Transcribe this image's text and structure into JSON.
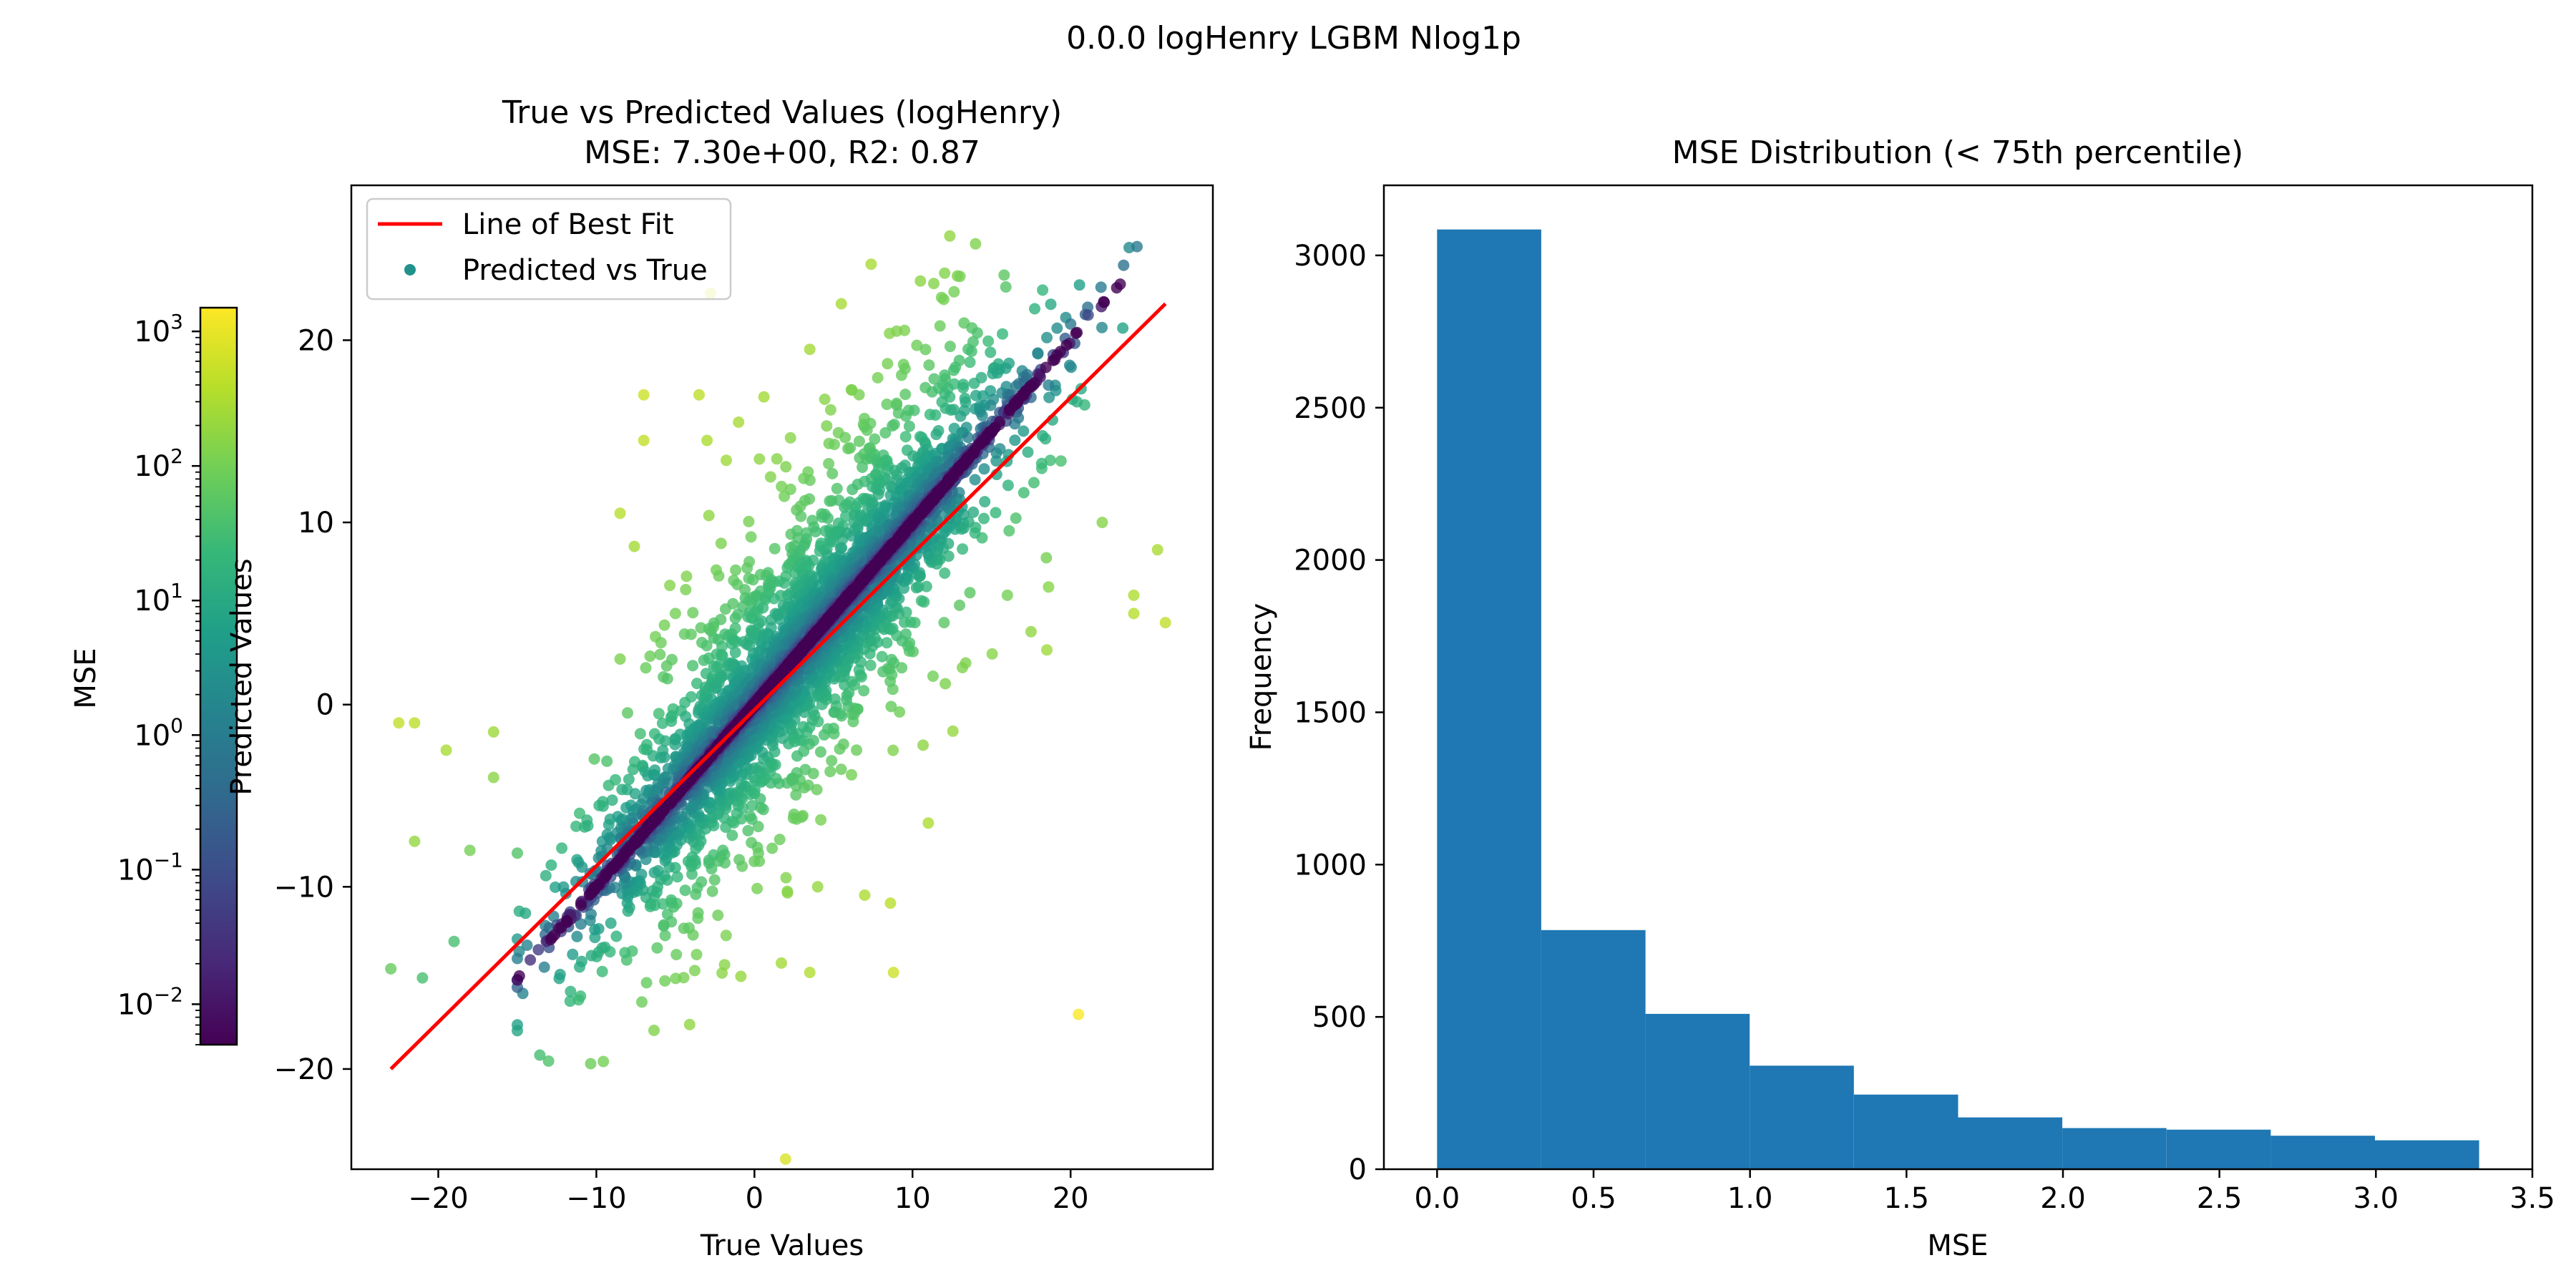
{
  "figure": {
    "suptitle": "0.0.0 logHenry LGBM Nlog1p"
  },
  "colors": {
    "fit_line": "#ff0000",
    "hist_bar": "#1f77b4",
    "viridis": [
      "#440154",
      "#482878",
      "#3e4a89",
      "#31688e",
      "#26828e",
      "#1f9e89",
      "#35b779",
      "#6ece58",
      "#b5de2b",
      "#fde725"
    ]
  },
  "chart_data": [
    {
      "type": "scatter",
      "title": "True vs Predicted Values (logHenry)",
      "subtitle": "MSE: 7.30e+00, R2: 0.87",
      "xlabel": "True Values",
      "ylabel": "Predicted Values",
      "xlim": [
        -25.5,
        29
      ],
      "ylim": [
        -25.5,
        28.5
      ],
      "xticks": [
        "−20",
        "−10",
        "0",
        "10",
        "20"
      ],
      "yticks": [
        "−20",
        "−10",
        "0",
        "10",
        "20"
      ],
      "legend": {
        "placement": "top-left",
        "entries": [
          "Line of Best Fit",
          "Predicted vs True"
        ]
      },
      "fit_line": {
        "x": [
          -23,
          26
        ],
        "y": [
          -20,
          22
        ]
      },
      "approx_point_count": 5000,
      "outliers": [
        [
          -23,
          -14.5
        ],
        [
          -22.5,
          -1
        ],
        [
          -21.5,
          -1
        ],
        [
          -19.5,
          -2.5
        ],
        [
          -16.5,
          -1.5
        ],
        [
          -16.5,
          -4
        ],
        [
          -7,
          17
        ],
        [
          -7,
          14.5
        ],
        [
          -3.5,
          17
        ],
        [
          -3,
          14.5
        ],
        [
          -1,
          15.5
        ],
        [
          -8.5,
          10.5
        ],
        [
          3.5,
          -14.7
        ],
        [
          8.8,
          -14.7
        ],
        [
          20.5,
          -17
        ],
        [
          4,
          -10
        ],
        [
          11,
          -6.5
        ],
        [
          17.5,
          4
        ],
        [
          18.5,
          3
        ],
        [
          24,
          5
        ],
        [
          26,
          4.5
        ],
        [
          13,
          23.5
        ],
        [
          5.5,
          22
        ],
        [
          3.5,
          19.5
        ],
        [
          9,
          20.5
        ],
        [
          -21.5,
          -7.5
        ],
        [
          -18,
          -8
        ],
        [
          -19,
          -13
        ],
        [
          -21,
          -15
        ],
        [
          16,
          6
        ],
        [
          22,
          10
        ],
        [
          24,
          6
        ],
        [
          25.5,
          8.5
        ],
        [
          12,
          4.5
        ],
        [
          -11,
          -16
        ],
        [
          -5.5,
          -11.5
        ],
        [
          2,
          -9.5
        ],
        [
          -2,
          -8
        ],
        [
          -8.5,
          2.5
        ],
        [
          -5,
          5
        ]
      ],
      "colorbar": {
        "label": "MSE",
        "scale": "log",
        "range": [
          0.005,
          1500
        ],
        "ticks": [
          {
            "base": "10",
            "exp": "3"
          },
          {
            "base": "10",
            "exp": "2"
          },
          {
            "base": "10",
            "exp": "1"
          },
          {
            "base": "10",
            "exp": "0"
          },
          {
            "base": "10",
            "exp": "−1"
          },
          {
            "base": "10",
            "exp": "−2"
          }
        ]
      }
    },
    {
      "type": "bar",
      "title": "MSE Distribution (< 75th percentile)",
      "xlabel": "MSE",
      "ylabel": "Frequency",
      "xlim": [
        -0.17,
        3.5
      ],
      "ylim": [
        0,
        3230
      ],
      "xticks": [
        "0.0",
        "0.5",
        "1.0",
        "1.5",
        "2.0",
        "2.5",
        "3.0",
        "3.5"
      ],
      "yticks": [
        "0",
        "500",
        "1000",
        "1500",
        "2000",
        "2500",
        "3000"
      ],
      "bin_edges": [
        0,
        0.333,
        0.666,
        0.999,
        1.332,
        1.665,
        1.998,
        2.331,
        2.664,
        2.997,
        3.33
      ],
      "values": [
        3085,
        785,
        510,
        340,
        245,
        170,
        135,
        130,
        110,
        95
      ]
    }
  ]
}
